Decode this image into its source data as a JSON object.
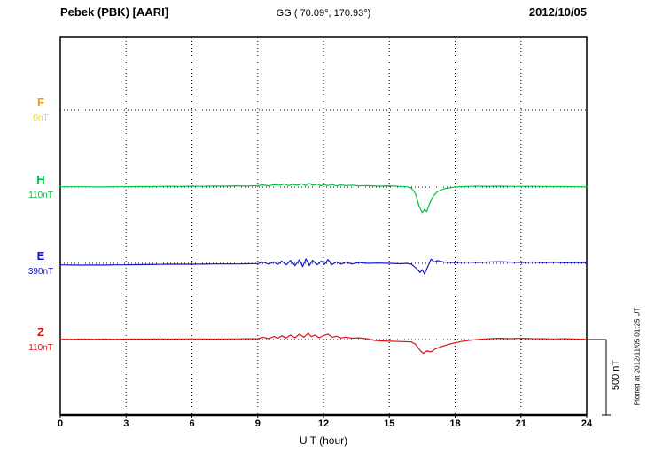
{
  "header": {
    "station": "Pebek (PBK)  [AARI]",
    "coords": "GG ( 70.09°, 170.93°)",
    "date": "2012/10/05"
  },
  "axis": {
    "ticks": [
      "0",
      "3",
      "6",
      "9",
      "12",
      "15",
      "18",
      "21",
      "24"
    ],
    "xlabel": "U T (hour)"
  },
  "scalebar": {
    "label": "500 nT"
  },
  "footer": {
    "plotted": "Plotted at 2012/11/05 01:25 UT"
  },
  "chart_data": {
    "type": "line",
    "title": "Pebek (PBK) [AARI] magnetogram 2012/10/05",
    "xlabel": "U T (hour)",
    "x_range": [
      0,
      24
    ],
    "x_ticks": [
      0,
      3,
      6,
      9,
      12,
      15,
      18,
      21,
      24
    ],
    "grid": "dotted",
    "scale_bar_nT": 500,
    "series": [
      {
        "name": "F",
        "baseline_label": "0nT",
        "color": "#FF9900",
        "value_color": "#FFD400",
        "points": []
      },
      {
        "name": "H",
        "baseline_label": "110nT",
        "color": "#00C040",
        "value_color": "#00C040",
        "points": [
          [
            0,
            2
          ],
          [
            0.5,
            2
          ],
          [
            1,
            2
          ],
          [
            1.5,
            1
          ],
          [
            2,
            1
          ],
          [
            2.5,
            2
          ],
          [
            3,
            2
          ],
          [
            3.5,
            3
          ],
          [
            4,
            3
          ],
          [
            4.5,
            4
          ],
          [
            5,
            5
          ],
          [
            5.5,
            4
          ],
          [
            6,
            6
          ],
          [
            6.5,
            5
          ],
          [
            7,
            7
          ],
          [
            7.5,
            6
          ],
          [
            8,
            8
          ],
          [
            8.5,
            7
          ],
          [
            9,
            10
          ],
          [
            9.25,
            14
          ],
          [
            9.5,
            8
          ],
          [
            9.75,
            16
          ],
          [
            10,
            12
          ],
          [
            10.2,
            20
          ],
          [
            10.4,
            10
          ],
          [
            10.6,
            18
          ],
          [
            10.8,
            12
          ],
          [
            11,
            22
          ],
          [
            11.2,
            10
          ],
          [
            11.35,
            26
          ],
          [
            11.5,
            12
          ],
          [
            11.7,
            20
          ],
          [
            11.9,
            8
          ],
          [
            12,
            18
          ],
          [
            12.2,
            10
          ],
          [
            12.4,
            16
          ],
          [
            12.6,
            8
          ],
          [
            12.8,
            14
          ],
          [
            13,
            10
          ],
          [
            13.3,
            13
          ],
          [
            13.6,
            8
          ],
          [
            14,
            10
          ],
          [
            14.5,
            6
          ],
          [
            15,
            8
          ],
          [
            15.5,
            4
          ],
          [
            15.8,
            2
          ],
          [
            16,
            -6
          ],
          [
            16.2,
            -45
          ],
          [
            16.35,
            -125
          ],
          [
            16.5,
            -170
          ],
          [
            16.6,
            -148
          ],
          [
            16.7,
            -163
          ],
          [
            16.85,
            -105
          ],
          [
            17,
            -60
          ],
          [
            17.2,
            -30
          ],
          [
            17.5,
            -12
          ],
          [
            17.8,
            -4
          ],
          [
            18,
            0
          ],
          [
            18.5,
            4
          ],
          [
            19,
            6
          ],
          [
            19.5,
            5
          ],
          [
            20,
            6
          ],
          [
            20.5,
            5
          ],
          [
            21,
            4
          ],
          [
            21.5,
            5
          ],
          [
            22,
            4
          ],
          [
            22.5,
            3
          ],
          [
            23,
            3
          ],
          [
            23.5,
            2
          ],
          [
            24,
            2
          ]
        ]
      },
      {
        "name": "E",
        "baseline_label": "390nT",
        "color": "#1515CC",
        "value_color": "#1515CC",
        "points": [
          [
            0,
            -10
          ],
          [
            0.5,
            -11
          ],
          [
            1,
            -12
          ],
          [
            1.5,
            -11
          ],
          [
            2,
            -12
          ],
          [
            2.5,
            -10
          ],
          [
            3,
            -10
          ],
          [
            3.5,
            -9
          ],
          [
            4,
            -8
          ],
          [
            4.5,
            -7
          ],
          [
            5,
            -6
          ],
          [
            5.5,
            -6
          ],
          [
            6,
            -6
          ],
          [
            6.5,
            -5
          ],
          [
            7,
            -4
          ],
          [
            7.5,
            -4
          ],
          [
            8,
            -4
          ],
          [
            8.5,
            -3
          ],
          [
            9,
            -2
          ],
          [
            9.25,
            8
          ],
          [
            9.5,
            -6
          ],
          [
            9.75,
            10
          ],
          [
            9.9,
            -8
          ],
          [
            10.1,
            15
          ],
          [
            10.3,
            -10
          ],
          [
            10.5,
            20
          ],
          [
            10.7,
            -15
          ],
          [
            10.9,
            25
          ],
          [
            11.05,
            -22
          ],
          [
            11.2,
            30
          ],
          [
            11.35,
            -15
          ],
          [
            11.5,
            20
          ],
          [
            11.7,
            -10
          ],
          [
            11.9,
            15
          ],
          [
            12.05,
            -6
          ],
          [
            12.2,
            25
          ],
          [
            12.4,
            -8
          ],
          [
            12.6,
            10
          ],
          [
            12.8,
            -5
          ],
          [
            13,
            8
          ],
          [
            13.3,
            -4
          ],
          [
            13.6,
            6
          ],
          [
            14,
            0
          ],
          [
            14.5,
            2
          ],
          [
            15,
            0
          ],
          [
            15.5,
            -3
          ],
          [
            15.8,
            0
          ],
          [
            16,
            -6
          ],
          [
            16.2,
            -28
          ],
          [
            16.4,
            -60
          ],
          [
            16.5,
            -42
          ],
          [
            16.6,
            -70
          ],
          [
            16.75,
            -22
          ],
          [
            16.9,
            28
          ],
          [
            17.05,
            8
          ],
          [
            17.2,
            18
          ],
          [
            17.5,
            8
          ],
          [
            18,
            5
          ],
          [
            18.5,
            9
          ],
          [
            19,
            6
          ],
          [
            19.5,
            9
          ],
          [
            20,
            11
          ],
          [
            20.5,
            8
          ],
          [
            21,
            6
          ],
          [
            21.5,
            9
          ],
          [
            22,
            5
          ],
          [
            22.5,
            7
          ],
          [
            23,
            4
          ],
          [
            23.5,
            6
          ],
          [
            24,
            4
          ]
        ]
      },
      {
        "name": "Z",
        "baseline_label": "110nT",
        "color": "#DD1111",
        "value_color": "#DD1111",
        "points": [
          [
            0,
            2
          ],
          [
            0.5,
            2
          ],
          [
            1,
            3
          ],
          [
            1.5,
            2
          ],
          [
            2,
            3
          ],
          [
            2.5,
            2
          ],
          [
            3,
            3
          ],
          [
            3.5,
            3
          ],
          [
            4,
            3
          ],
          [
            4.5,
            4
          ],
          [
            5,
            3
          ],
          [
            5.5,
            4
          ],
          [
            6,
            4
          ],
          [
            6.5,
            4
          ],
          [
            7,
            3
          ],
          [
            7.5,
            4
          ],
          [
            8,
            4
          ],
          [
            8.5,
            5
          ],
          [
            9,
            5
          ],
          [
            9.25,
            15
          ],
          [
            9.5,
            6
          ],
          [
            9.75,
            20
          ],
          [
            9.9,
            8
          ],
          [
            10.1,
            25
          ],
          [
            10.3,
            10
          ],
          [
            10.5,
            30
          ],
          [
            10.7,
            12
          ],
          [
            10.9,
            36
          ],
          [
            11.1,
            15
          ],
          [
            11.3,
            42
          ],
          [
            11.45,
            18
          ],
          [
            11.6,
            30
          ],
          [
            11.8,
            12
          ],
          [
            12,
            26
          ],
          [
            12.2,
            36
          ],
          [
            12.4,
            15
          ],
          [
            12.6,
            22
          ],
          [
            12.8,
            10
          ],
          [
            13,
            16
          ],
          [
            13.3,
            9
          ],
          [
            13.6,
            11
          ],
          [
            14,
            5
          ],
          [
            14.3,
            -5
          ],
          [
            14.6,
            -9
          ],
          [
            15,
            -11
          ],
          [
            15.5,
            -13
          ],
          [
            16,
            -16
          ],
          [
            16.2,
            -32
          ],
          [
            16.4,
            -72
          ],
          [
            16.55,
            -92
          ],
          [
            16.7,
            -76
          ],
          [
            16.9,
            -82
          ],
          [
            17.1,
            -62
          ],
          [
            17.4,
            -46
          ],
          [
            17.7,
            -32
          ],
          [
            18,
            -22
          ],
          [
            18.3,
            -13
          ],
          [
            18.6,
            -6
          ],
          [
            19,
            0
          ],
          [
            19.5,
            5
          ],
          [
            20,
            8
          ],
          [
            20.5,
            6
          ],
          [
            21,
            8
          ],
          [
            21.5,
            6
          ],
          [
            22,
            5
          ],
          [
            22.5,
            4
          ],
          [
            23,
            5
          ],
          [
            23.5,
            3
          ],
          [
            24,
            2
          ]
        ]
      }
    ]
  }
}
